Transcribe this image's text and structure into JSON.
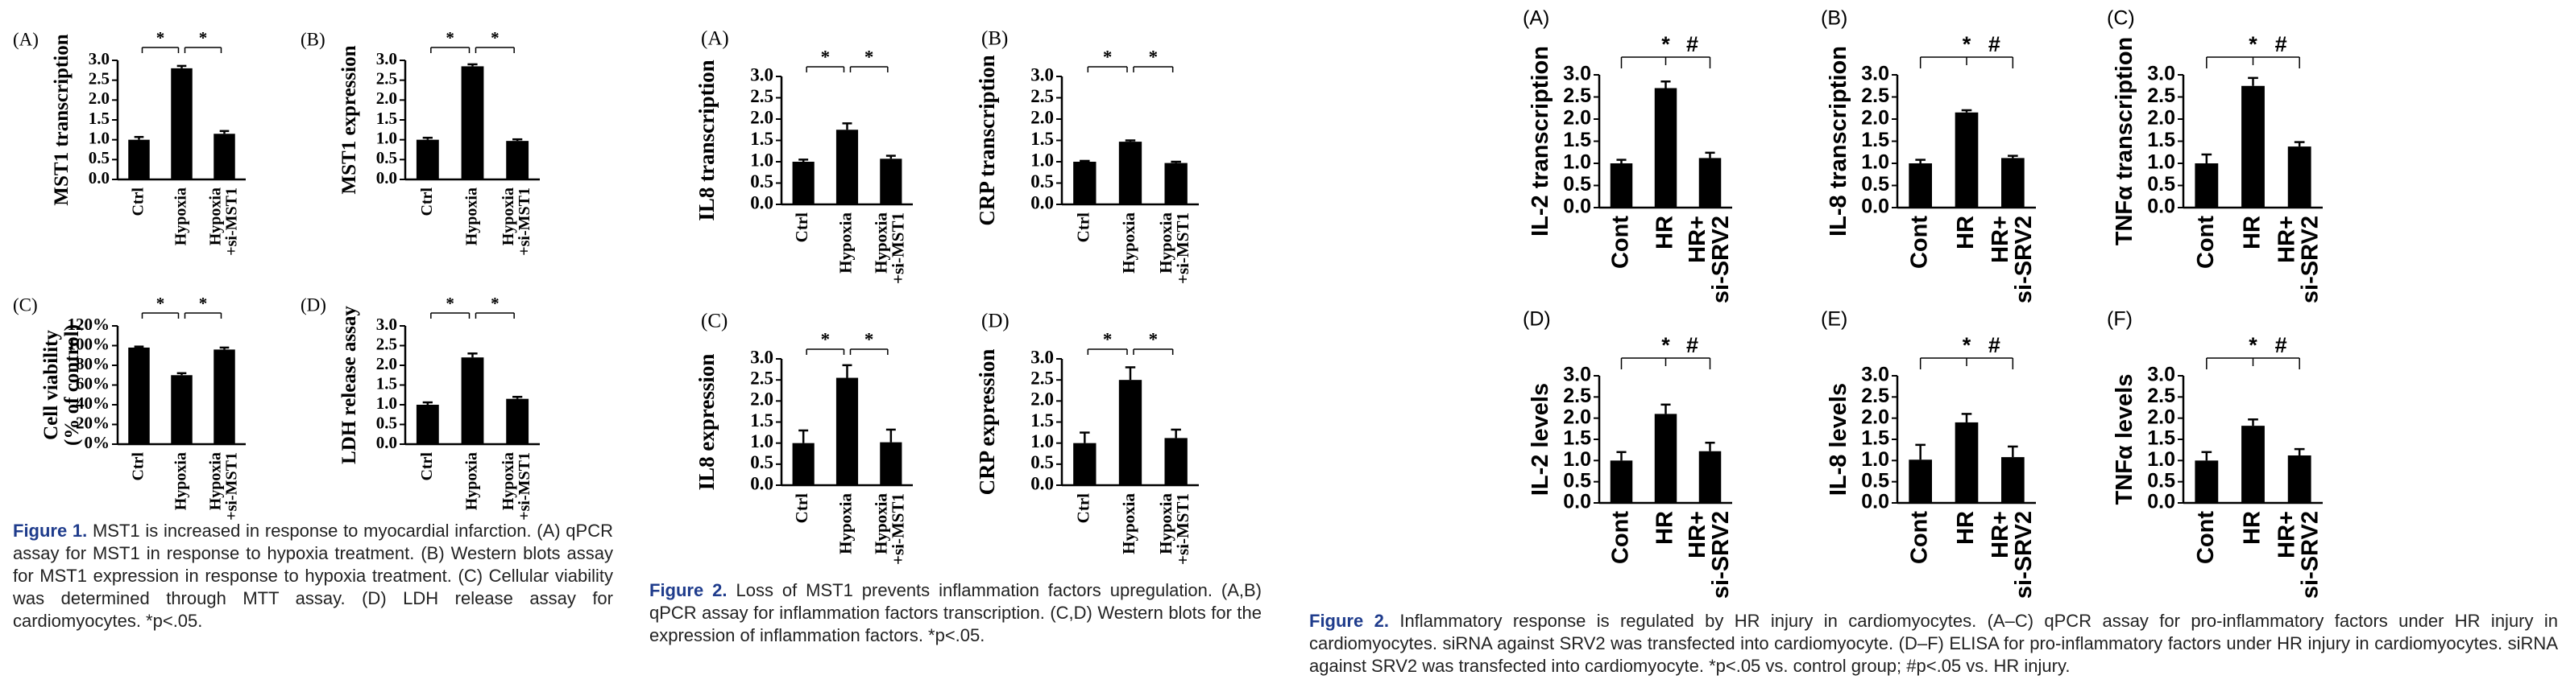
{
  "chart_data": [
    {
      "type": "bar",
      "panel": "(A)",
      "ylabel": "MST1 transcription",
      "categories": [
        "Ctrl",
        "Hypoxia",
        "Hypoxia\n+si-MST1"
      ],
      "values": [
        1.0,
        2.8,
        1.15
      ],
      "errors": [
        0.07,
        0.06,
        0.07
      ],
      "color": "#000000",
      "ylim": [
        0,
        3
      ],
      "yticks": [
        {
          "value": 0,
          "label": "0.0"
        },
        {
          "value": 0.5,
          "label": "0.5"
        },
        {
          "value": 1,
          "label": "1.0"
        },
        {
          "value": 1.5,
          "label": "1.5"
        },
        {
          "value": 2,
          "label": "2.0"
        },
        {
          "value": 2.5,
          "label": "2.5"
        },
        {
          "value": 3,
          "label": "3.0"
        }
      ],
      "annotations": [
        "*",
        "*"
      ]
    },
    {
      "type": "bar",
      "panel": "(B)",
      "ylabel": "MST1 expression",
      "categories": [
        "Ctrl",
        "Hypoxia",
        "Hypoxia\n+si-MST1"
      ],
      "values": [
        1.0,
        2.85,
        0.97
      ],
      "errors": [
        0.05,
        0.05,
        0.04
      ],
      "color": "#000000",
      "ylim": [
        0,
        3
      ],
      "yticks": [
        {
          "value": 0,
          "label": "0.0"
        },
        {
          "value": 0.5,
          "label": "0.5"
        },
        {
          "value": 1,
          "label": "1.0"
        },
        {
          "value": 1.5,
          "label": "1.5"
        },
        {
          "value": 2,
          "label": "2.0"
        },
        {
          "value": 2.5,
          "label": "2.5"
        },
        {
          "value": 3,
          "label": "3.0"
        }
      ],
      "annotations": [
        "*",
        "*"
      ]
    },
    {
      "type": "bar",
      "panel": "(C)",
      "ylabel": "Cell viability\n(% of control)",
      "categories": [
        "Ctrl",
        "Hypoxia",
        "Hypoxia\n+si-MST1"
      ],
      "values": [
        98,
        70,
        96
      ],
      "errors": [
        1,
        2,
        2
      ],
      "color": "#000000",
      "ylim": [
        0,
        120
      ],
      "yticks": [
        {
          "value": 0,
          "label": "0%"
        },
        {
          "value": 20,
          "label": "20%"
        },
        {
          "value": 40,
          "label": "40%"
        },
        {
          "value": 60,
          "label": "60%"
        },
        {
          "value": 80,
          "label": "80%"
        },
        {
          "value": 100,
          "label": "100%"
        },
        {
          "value": 120,
          "label": "120%"
        }
      ],
      "annotations": [
        "*",
        "*"
      ]
    },
    {
      "type": "bar",
      "panel": "(D)",
      "ylabel": "LDH release assay",
      "categories": [
        "Ctrl",
        "Hypoxia",
        "Hypoxia\n+si-MST1"
      ],
      "values": [
        1.0,
        2.2,
        1.15
      ],
      "errors": [
        0.06,
        0.1,
        0.05
      ],
      "color": "#000000",
      "ylim": [
        0,
        3
      ],
      "yticks": [
        {
          "value": 0,
          "label": "0.0"
        },
        {
          "value": 0.5,
          "label": "0.5"
        },
        {
          "value": 1,
          "label": "1.0"
        },
        {
          "value": 1.5,
          "label": "1.5"
        },
        {
          "value": 2,
          "label": "2.0"
        },
        {
          "value": 2.5,
          "label": "2.5"
        },
        {
          "value": 3,
          "label": "3.0"
        }
      ],
      "annotations": [
        "*",
        "*"
      ]
    },
    {
      "type": "bar",
      "panel": "(A)",
      "ylabel": "IL8 transcription",
      "categories": [
        "Ctrl",
        "Hypoxia",
        "Hypoxia\n+si-MST1"
      ],
      "values": [
        1.0,
        1.75,
        1.07
      ],
      "errors": [
        0.05,
        0.15,
        0.07
      ],
      "color": "#000000",
      "ylim": [
        0,
        3
      ],
      "yticks": [
        {
          "value": 0,
          "label": "0.0"
        },
        {
          "value": 0.5,
          "label": "0.5"
        },
        {
          "value": 1,
          "label": "1.0"
        },
        {
          "value": 1.5,
          "label": "1.5"
        },
        {
          "value": 2,
          "label": "2.0"
        },
        {
          "value": 2.5,
          "label": "2.5"
        },
        {
          "value": 3,
          "label": "3.0"
        }
      ],
      "annotations": [
        "*",
        "*"
      ]
    },
    {
      "type": "bar",
      "panel": "(B)",
      "ylabel": "CRP transcription",
      "categories": [
        "Ctrl",
        "Hypoxia",
        "Hypoxia\n+si-MST1"
      ],
      "values": [
        1.0,
        1.47,
        0.97
      ],
      "errors": [
        0.02,
        0.03,
        0.03
      ],
      "color": "#000000",
      "ylim": [
        0,
        3
      ],
      "yticks": [
        {
          "value": 0,
          "label": "0.0"
        },
        {
          "value": 0.5,
          "label": "0.5"
        },
        {
          "value": 1,
          "label": "1.0"
        },
        {
          "value": 1.5,
          "label": "1.5"
        },
        {
          "value": 2,
          "label": "2.0"
        },
        {
          "value": 2.5,
          "label": "2.5"
        },
        {
          "value": 3,
          "label": "3.0"
        }
      ],
      "annotations": [
        "*",
        "*"
      ]
    },
    {
      "type": "bar",
      "panel": "(C)",
      "ylabel": "IL8 expression",
      "categories": [
        "Ctrl",
        "Hypoxia",
        "Hypoxia\n+si-MST1"
      ],
      "values": [
        1.0,
        2.55,
        1.02
      ],
      "errors": [
        0.3,
        0.3,
        0.3
      ],
      "color": "#000000",
      "ylim": [
        0,
        3
      ],
      "yticks": [
        {
          "value": 0,
          "label": "0.0"
        },
        {
          "value": 0.5,
          "label": "0.5"
        },
        {
          "value": 1,
          "label": "1.0"
        },
        {
          "value": 1.5,
          "label": "1.5"
        },
        {
          "value": 2,
          "label": "2.0"
        },
        {
          "value": 2.5,
          "label": "2.5"
        },
        {
          "value": 3,
          "label": "3.0"
        }
      ],
      "annotations": [
        "*",
        "*"
      ]
    },
    {
      "type": "bar",
      "panel": "(D)",
      "ylabel": "CRP expression",
      "categories": [
        "Ctrl",
        "Hypoxia",
        "Hypoxia\n+si-MST1"
      ],
      "values": [
        1.0,
        2.5,
        1.12
      ],
      "errors": [
        0.25,
        0.3,
        0.2
      ],
      "color": "#000000",
      "ylim": [
        0,
        3
      ],
      "yticks": [
        {
          "value": 0,
          "label": "0.0"
        },
        {
          "value": 0.5,
          "label": "0.5"
        },
        {
          "value": 1,
          "label": "1.0"
        },
        {
          "value": 1.5,
          "label": "1.5"
        },
        {
          "value": 2,
          "label": "2.0"
        },
        {
          "value": 2.5,
          "label": "2.5"
        },
        {
          "value": 3,
          "label": "3.0"
        }
      ],
      "annotations": [
        "*",
        "*"
      ]
    },
    {
      "type": "bar",
      "panel": "(A)",
      "ylabel": "IL-2 transcription",
      "categories": [
        "Cont",
        "HR",
        "HR+\nsi-SRV2"
      ],
      "values": [
        1.0,
        2.7,
        1.12
      ],
      "errors": [
        0.08,
        0.15,
        0.12
      ],
      "color": "#000000",
      "ylim": [
        0,
        3
      ],
      "yticks": [
        {
          "value": 0,
          "label": "0.0"
        },
        {
          "value": 0.5,
          "label": "0.5"
        },
        {
          "value": 1,
          "label": "1.0"
        },
        {
          "value": 1.5,
          "label": "1.5"
        },
        {
          "value": 2,
          "label": "2.0"
        },
        {
          "value": 2.5,
          "label": "2.5"
        },
        {
          "value": 3,
          "label": "3.0"
        }
      ],
      "annotations": [
        "*",
        "#"
      ]
    },
    {
      "type": "bar",
      "panel": "(B)",
      "ylabel": "IL-8 transcription",
      "categories": [
        "Cont",
        "HR",
        "HR+\nsi-SRV2"
      ],
      "values": [
        1.0,
        2.15,
        1.12
      ],
      "errors": [
        0.08,
        0.05,
        0.05
      ],
      "color": "#000000",
      "ylim": [
        0,
        3
      ],
      "yticks": [
        {
          "value": 0,
          "label": "0.0"
        },
        {
          "value": 0.5,
          "label": "0.5"
        },
        {
          "value": 1,
          "label": "1.0"
        },
        {
          "value": 1.5,
          "label": "1.5"
        },
        {
          "value": 2,
          "label": "2.0"
        },
        {
          "value": 2.5,
          "label": "2.5"
        },
        {
          "value": 3,
          "label": "3.0"
        }
      ],
      "annotations": [
        "*",
        "#"
      ]
    },
    {
      "type": "bar",
      "panel": "(C)",
      "ylabel": "TNFα transcription",
      "categories": [
        "Cont",
        "HR",
        "HR+\nsi-SRV2"
      ],
      "values": [
        1.0,
        2.75,
        1.38
      ],
      "errors": [
        0.2,
        0.18,
        0.1
      ],
      "color": "#000000",
      "ylim": [
        0,
        3
      ],
      "yticks": [
        {
          "value": 0,
          "label": "0.0"
        },
        {
          "value": 0.5,
          "label": "0.5"
        },
        {
          "value": 1,
          "label": "1.0"
        },
        {
          "value": 1.5,
          "label": "1.5"
        },
        {
          "value": 2,
          "label": "2.0"
        },
        {
          "value": 2.5,
          "label": "2.5"
        },
        {
          "value": 3,
          "label": "3.0"
        }
      ],
      "annotations": [
        "*",
        "#"
      ]
    },
    {
      "type": "bar",
      "panel": "(D)",
      "ylabel": "IL-2 levels",
      "categories": [
        "Cont",
        "HR",
        "HR+\nsi-SRV2"
      ],
      "values": [
        1.0,
        2.1,
        1.22
      ],
      "errors": [
        0.2,
        0.22,
        0.2
      ],
      "color": "#000000",
      "ylim": [
        0,
        3
      ],
      "yticks": [
        {
          "value": 0,
          "label": "0.0"
        },
        {
          "value": 0.5,
          "label": "0.5"
        },
        {
          "value": 1,
          "label": "1.0"
        },
        {
          "value": 1.5,
          "label": "1.5"
        },
        {
          "value": 2,
          "label": "2.0"
        },
        {
          "value": 2.5,
          "label": "2.5"
        },
        {
          "value": 3,
          "label": "3.0"
        }
      ],
      "annotations": [
        "*",
        "#"
      ]
    },
    {
      "type": "bar",
      "panel": "(E)",
      "ylabel": "IL-8 levels",
      "categories": [
        "Cont",
        "HR",
        "HR+\nsi-SRV2"
      ],
      "values": [
        1.02,
        1.9,
        1.08
      ],
      "errors": [
        0.35,
        0.2,
        0.25
      ],
      "color": "#000000",
      "ylim": [
        0,
        3
      ],
      "yticks": [
        {
          "value": 0,
          "label": "0.0"
        },
        {
          "value": 0.5,
          "label": "0.5"
        },
        {
          "value": 1,
          "label": "1.0"
        },
        {
          "value": 1.5,
          "label": "1.5"
        },
        {
          "value": 2,
          "label": "2.0"
        },
        {
          "value": 2.5,
          "label": "2.5"
        },
        {
          "value": 3,
          "label": "3.0"
        }
      ],
      "annotations": [
        "*",
        "#"
      ]
    },
    {
      "type": "bar",
      "panel": "(F)",
      "ylabel": "TNFα levels",
      "categories": [
        "Cont",
        "HR",
        "HR+\nsi-SRV2"
      ],
      "values": [
        1.0,
        1.82,
        1.12
      ],
      "errors": [
        0.2,
        0.15,
        0.15
      ],
      "color": "#000000",
      "ylim": [
        0,
        3
      ],
      "yticks": [
        {
          "value": 0,
          "label": "0.0"
        },
        {
          "value": 0.5,
          "label": "0.5"
        },
        {
          "value": 1,
          "label": "1.0"
        },
        {
          "value": 1.5,
          "label": "1.5"
        },
        {
          "value": 2,
          "label": "2.0"
        },
        {
          "value": 2.5,
          "label": "2.5"
        },
        {
          "value": 3,
          "label": "3.0"
        }
      ],
      "annotations": [
        "*",
        "#"
      ]
    }
  ],
  "captions": [
    {
      "label": "Figure 1.",
      "text": "MST1 is increased in response to myocardial infarction. (A) qPCR assay for MST1 in response to hypoxia treatment. (B) Western blots assay for MST1 expression in response to hypoxia treatment. (C) Cellular viability was determined through MTT assay. (D) LDH release assay for cardiomyocytes. *p<.05."
    },
    {
      "label": "Figure 2.",
      "text": "Loss of MST1 prevents inflammation factors upregulation. (A,B) qPCR assay for inflammation factors transcription. (C,D) Western blots for the expression of inflammation factors. *p<.05."
    },
    {
      "label": "Figure 2.",
      "text": "Inflammatory response is regulated by HR injury in cardiomyocytes. (A–C) qPCR assay for pro-inflammatory factors under HR injury in cardiomyocytes. siRNA against SRV2 was transfected into cardiomyocyte. (D–F) ELISA for pro-inflammatory factors under HR injury in cardiomyocytes. siRNA against SRV2 was transfected into cardiomyocyte. *p<.05 vs. control group; #p<.05 vs. HR injury."
    }
  ]
}
